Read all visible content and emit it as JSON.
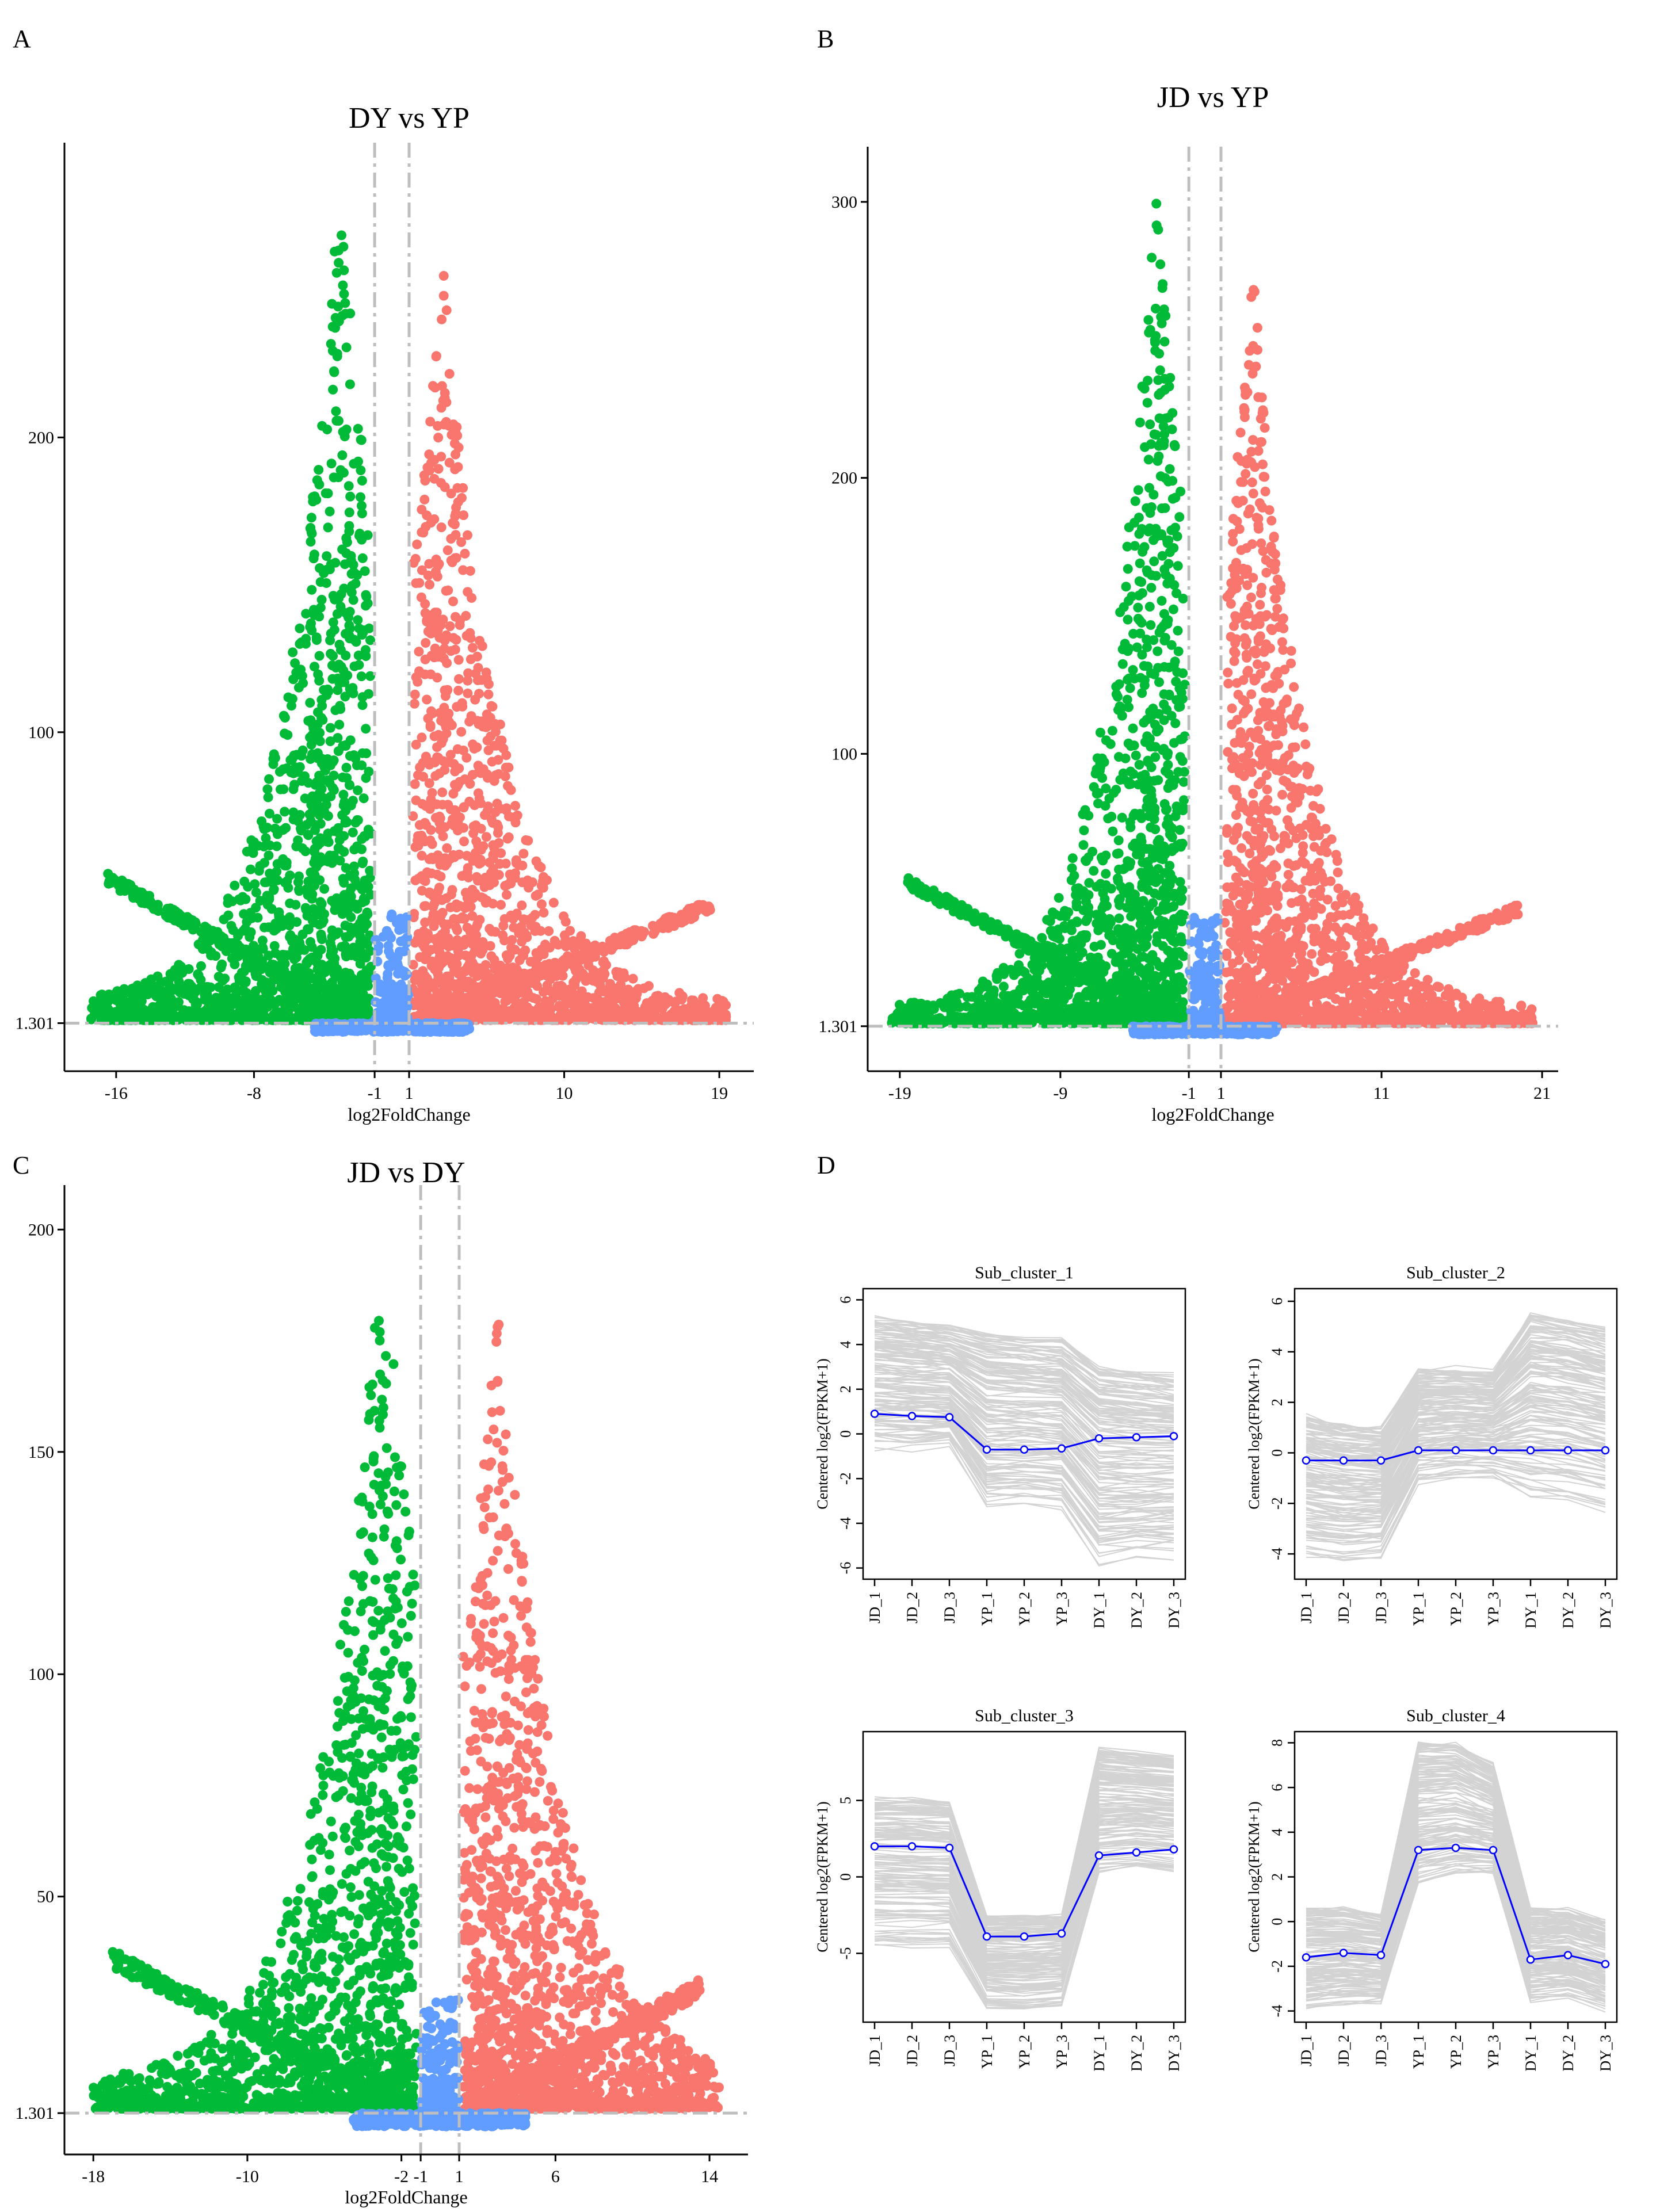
{
  "panels": {
    "A": "A",
    "B": "B",
    "C": "C",
    "D": "D"
  },
  "chart_data": [
    {
      "type": "scatter",
      "panel": "A",
      "title": "DY vs YP",
      "xlabel": "log2FoldChange",
      "ylabel": "",
      "xticks": [
        "-16",
        "-8",
        "-1",
        "1",
        "10",
        "19"
      ],
      "xtick_values": [
        -16,
        -8,
        -1,
        1,
        10,
        19
      ],
      "yticks": [
        "1.301",
        "100",
        "200"
      ],
      "ytick_values": [
        1.301,
        100,
        200
      ],
      "xlim": [
        -19,
        21
      ],
      "ylim": [
        -15,
        300
      ],
      "threshold_y": 1.301,
      "threshold_x": [
        -1,
        1
      ],
      "colors": {
        "down": "#00BA38",
        "up": "#F8766D",
        "ns": "#619CFF",
        "guide": "#BEBEBE"
      }
    },
    {
      "type": "scatter",
      "panel": "B",
      "title": "JD vs YP",
      "xlabel": "log2FoldChange",
      "ylabel": "",
      "xticks": [
        "-19",
        "-9",
        "-1",
        "1",
        "11",
        "21"
      ],
      "xtick_values": [
        -19,
        -9,
        -1,
        1,
        11,
        21
      ],
      "yticks": [
        "1.301",
        "100",
        "200",
        "300"
      ],
      "ytick_values": [
        1.301,
        100,
        200,
        300
      ],
      "xlim": [
        -21,
        22
      ],
      "ylim": [
        -15,
        320
      ],
      "threshold_y": 1.301,
      "threshold_x": [
        -1,
        1
      ],
      "colors": {
        "down": "#00BA38",
        "up": "#F8766D",
        "ns": "#619CFF",
        "guide": "#BEBEBE"
      }
    },
    {
      "type": "scatter",
      "panel": "C",
      "title": "JD vs DY",
      "xlabel": "log2FoldChange",
      "ylabel": "",
      "xticks": [
        "-18",
        "-10",
        "-2",
        "-1",
        "1",
        "6",
        "14"
      ],
      "xtick_values": [
        -18,
        -10,
        -2,
        -1,
        1,
        6,
        14
      ],
      "yticks": [
        "1.301",
        "50",
        "100",
        "150",
        "200"
      ],
      "ytick_values": [
        1.301,
        50,
        100,
        150,
        200
      ],
      "xlim": [
        -19.5,
        16
      ],
      "ylim": [
        -8,
        210
      ],
      "threshold_y": 1.301,
      "threshold_x": [
        -1,
        1
      ],
      "colors": {
        "down": "#00BA38",
        "up": "#F8766D",
        "ns": "#619CFF",
        "guide": "#BEBEBE"
      }
    },
    {
      "type": "line",
      "panel": "D",
      "ylabel": "Centered log2(FPKM+1)",
      "categories": [
        "JD_1",
        "JD_2",
        "JD_3",
        "YP_1",
        "YP_2",
        "YP_3",
        "DY_1",
        "DY_2",
        "DY_3"
      ],
      "line_color": "#D3D3D3",
      "centroid_color": "#0000FF",
      "subplots": [
        {
          "title": "Sub_cluster_1",
          "yticks": [
            "-6",
            "-4",
            "-2",
            "0",
            "2",
            "4",
            "6"
          ],
          "ytick_values": [
            -6,
            -4,
            -2,
            0,
            2,
            4,
            6
          ],
          "ylim": [
            -6.5,
            6.5
          ],
          "centroid": [
            0.9,
            0.8,
            0.75,
            -0.7,
            -0.7,
            -0.65,
            -0.2,
            -0.15,
            -0.1
          ],
          "upper": [
            5.2,
            5.0,
            4.8,
            4.5,
            4.3,
            4.2,
            3.0,
            2.8,
            2.6
          ],
          "lower": [
            -0.8,
            -0.8,
            -0.7,
            -3.5,
            -3.4,
            -3.5,
            -6.0,
            -5.8,
            -5.7
          ]
        },
        {
          "title": "Sub_cluster_2",
          "yticks": [
            "-4",
            "-2",
            "0",
            "2",
            "4",
            "6"
          ],
          "ytick_values": [
            -4,
            -2,
            0,
            2,
            4,
            6
          ],
          "ylim": [
            -5,
            6.5
          ],
          "centroid": [
            -0.3,
            -0.3,
            -0.3,
            0.1,
            0.1,
            0.1,
            0.1,
            0.1,
            0.1
          ],
          "upper": [
            1.5,
            1.2,
            1.1,
            3.3,
            3.3,
            3.2,
            5.5,
            5.3,
            5.0
          ],
          "lower": [
            -4.2,
            -4.3,
            -4.2,
            -1.2,
            -1.0,
            -1.0,
            -1.8,
            -2.0,
            -2.4
          ]
        },
        {
          "title": "Sub_cluster_3",
          "yticks": [
            "-5",
            "0",
            "5"
          ],
          "ytick_values": [
            -5,
            0,
            5
          ],
          "ylim": [
            -9.5,
            9.5
          ],
          "centroid": [
            2.0,
            2.0,
            1.9,
            -3.9,
            -3.9,
            -3.7,
            1.4,
            1.6,
            1.8
          ],
          "upper": [
            5.2,
            5.2,
            5.0,
            -2.5,
            -2.5,
            -2.5,
            8.5,
            8.2,
            8.0
          ],
          "lower": [
            -4.5,
            -4.6,
            -4.5,
            -8.6,
            -8.7,
            -8.5,
            0.3,
            0.6,
            0.4
          ]
        },
        {
          "title": "Sub_cluster_4",
          "yticks": [
            "-4",
            "-2",
            "0",
            "2",
            "4",
            "6",
            "8"
          ],
          "ytick_values": [
            -4,
            -2,
            0,
            2,
            4,
            6,
            8
          ],
          "ylim": [
            -4.5,
            8.5
          ],
          "centroid": [
            -1.6,
            -1.4,
            -1.5,
            3.2,
            3.3,
            3.2,
            -1.7,
            -1.5,
            -1.9
          ],
          "upper": [
            0.5,
            0.5,
            0.2,
            8.0,
            8.0,
            7.0,
            0.5,
            0.5,
            0.0
          ],
          "lower": [
            -4.0,
            -3.8,
            -3.8,
            1.6,
            2.0,
            2.0,
            -3.6,
            -3.4,
            -4.0
          ]
        }
      ]
    }
  ]
}
